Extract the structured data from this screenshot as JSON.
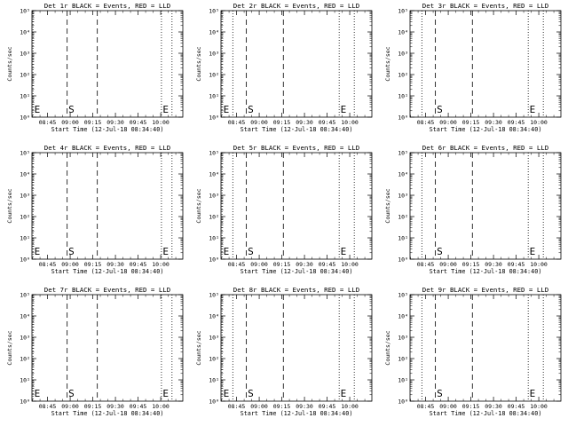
{
  "chart_data": [
    {
      "type": "line",
      "title": "Det 1r BLACK = Events, RED = LLD",
      "xlabel": "Start Time (12-Jul-18 08:34:40)",
      "ylabel": "Counts/sec",
      "x_ticks": [
        "08:45",
        "09:00",
        "09:15",
        "09:30",
        "09:45",
        "10:00"
      ],
      "y_ticks": [
        "10⁰",
        "10¹",
        "10²",
        "10³",
        "10⁴",
        "10⁵"
      ],
      "xlim": [
        "08:34:40",
        "10:14:40"
      ],
      "ylim": [
        1,
        100000
      ],
      "y_scale": "log",
      "markers": [
        {
          "label": "E",
          "x": "08:35:20",
          "style": "dotted"
        },
        {
          "label": "S",
          "x": "08:58:00",
          "style": "dashed"
        },
        {
          "label": "",
          "x": "09:18:00",
          "style": "dashed"
        },
        {
          "label": "E",
          "x": "10:00:30",
          "style": "dotted"
        },
        {
          "label": "",
          "x": "10:07:30",
          "style": "dotted"
        }
      ],
      "series": []
    },
    {
      "type": "line",
      "title": "Det 2r BLACK = Events, RED = LLD",
      "xlabel": "Start Time (12-Jul-18 08:34:40)",
      "ylabel": "Counts/sec",
      "x_ticks": [
        "08:45",
        "09:00",
        "09:15",
        "09:30",
        "09:45",
        "10:00"
      ],
      "y_ticks": [
        "10⁰",
        "10¹",
        "10²",
        "10³",
        "10⁴",
        "10⁵"
      ],
      "xlim": [
        "08:34:40",
        "10:14:40"
      ],
      "ylim": [
        1,
        100000
      ],
      "y_scale": "log",
      "markers": [
        {
          "label": "E",
          "x": "08:35:20",
          "style": "dotted"
        },
        {
          "label": "",
          "x": "08:42:30",
          "style": "dotted"
        },
        {
          "label": "S",
          "x": "08:51:30",
          "style": "dashed"
        },
        {
          "label": "",
          "x": "09:16:00",
          "style": "dashed"
        },
        {
          "label": "E",
          "x": "09:53:00",
          "style": "dotted"
        },
        {
          "label": "",
          "x": "10:03:00",
          "style": "dotted"
        }
      ],
      "series": []
    },
    {
      "type": "line",
      "title": "Det 3r BLACK = Events, RED = LLD",
      "xlabel": "Start Time (12-Jul-18 08:34:40)",
      "ylabel": "Counts/sec",
      "x_ticks": [
        "08:45",
        "09:00",
        "09:15",
        "09:30",
        "09:45",
        "10:00"
      ],
      "y_ticks": [
        "10⁰",
        "10¹",
        "10²",
        "10³",
        "10⁴",
        "10⁵"
      ],
      "xlim": [
        "08:34:40",
        "10:14:40"
      ],
      "ylim": [
        1,
        100000
      ],
      "y_scale": "log",
      "markers": [
        {
          "label": "",
          "x": "08:42:30",
          "style": "dotted"
        },
        {
          "label": "S",
          "x": "08:51:30",
          "style": "dashed"
        },
        {
          "label": "",
          "x": "09:16:00",
          "style": "dashed"
        },
        {
          "label": "E",
          "x": "09:53:00",
          "style": "dotted"
        },
        {
          "label": "",
          "x": "10:03:00",
          "style": "dotted"
        }
      ],
      "series": []
    },
    {
      "type": "line",
      "title": "Det 4r BLACK = Events, RED = LLD",
      "xlabel": "Start Time (12-Jul-18 08:34:40)",
      "ylabel": "Counts/sec",
      "x_ticks": [
        "08:45",
        "09:00",
        "09:15",
        "09:30",
        "09:45",
        "10:00"
      ],
      "y_ticks": [
        "10⁰",
        "10¹",
        "10²",
        "10³",
        "10⁴",
        "10⁵"
      ],
      "xlim": [
        "08:34:40",
        "10:14:40"
      ],
      "ylim": [
        1,
        100000
      ],
      "y_scale": "log",
      "markers": [
        {
          "label": "E",
          "x": "08:35:20",
          "style": "dotted"
        },
        {
          "label": "S",
          "x": "08:58:00",
          "style": "dashed"
        },
        {
          "label": "",
          "x": "09:18:00",
          "style": "dashed"
        },
        {
          "label": "E",
          "x": "10:00:30",
          "style": "dotted"
        },
        {
          "label": "",
          "x": "10:07:30",
          "style": "dotted"
        }
      ],
      "series": []
    },
    {
      "type": "line",
      "title": "Det 5r BLACK = Events, RED = LLD",
      "xlabel": "Start Time (12-Jul-18 08:34:40)",
      "ylabel": "Counts/sec",
      "x_ticks": [
        "08:45",
        "09:00",
        "09:15",
        "09:30",
        "09:45",
        "10:00"
      ],
      "y_ticks": [
        "10⁰",
        "10¹",
        "10²",
        "10³",
        "10⁴",
        "10⁵"
      ],
      "xlim": [
        "08:34:40",
        "10:14:40"
      ],
      "ylim": [
        1,
        100000
      ],
      "y_scale": "log",
      "markers": [
        {
          "label": "E",
          "x": "08:35:20",
          "style": "dotted"
        },
        {
          "label": "",
          "x": "08:42:30",
          "style": "dotted"
        },
        {
          "label": "S",
          "x": "08:51:30",
          "style": "dashed"
        },
        {
          "label": "",
          "x": "09:16:00",
          "style": "dashed"
        },
        {
          "label": "E",
          "x": "09:53:00",
          "style": "dotted"
        },
        {
          "label": "",
          "x": "10:03:00",
          "style": "dotted"
        }
      ],
      "series": []
    },
    {
      "type": "line",
      "title": "Det 6r BLACK = Events, RED = LLD",
      "xlabel": "Start Time (12-Jul-18 08:34:40)",
      "ylabel": "Counts/sec",
      "x_ticks": [
        "08:45",
        "09:00",
        "09:15",
        "09:30",
        "09:45",
        "10:00"
      ],
      "y_ticks": [
        "10⁰",
        "10¹",
        "10²",
        "10³",
        "10⁴",
        "10⁵"
      ],
      "xlim": [
        "08:34:40",
        "10:14:40"
      ],
      "ylim": [
        1,
        100000
      ],
      "y_scale": "log",
      "markers": [
        {
          "label": "",
          "x": "08:42:30",
          "style": "dotted"
        },
        {
          "label": "S",
          "x": "08:51:30",
          "style": "dashed"
        },
        {
          "label": "",
          "x": "09:16:00",
          "style": "dashed"
        },
        {
          "label": "E",
          "x": "09:53:00",
          "style": "dotted"
        },
        {
          "label": "",
          "x": "10:03:00",
          "style": "dotted"
        }
      ],
      "series": []
    },
    {
      "type": "line",
      "title": "Det 7r BLACK = Events, RED = LLD",
      "xlabel": "Start Time (12-Jul-18 08:34:40)",
      "ylabel": "Counts/sec",
      "x_ticks": [
        "08:45",
        "09:00",
        "09:15",
        "09:30",
        "09:45",
        "10:00"
      ],
      "y_ticks": [
        "10⁰",
        "10¹",
        "10²",
        "10³",
        "10⁴",
        "10⁵"
      ],
      "xlim": [
        "08:34:40",
        "10:14:40"
      ],
      "ylim": [
        1,
        100000
      ],
      "y_scale": "log",
      "markers": [
        {
          "label": "E",
          "x": "08:35:20",
          "style": "dotted"
        },
        {
          "label": "S",
          "x": "08:58:00",
          "style": "dashed"
        },
        {
          "label": "",
          "x": "09:18:00",
          "style": "dashed"
        },
        {
          "label": "E",
          "x": "10:00:30",
          "style": "dotted"
        },
        {
          "label": "",
          "x": "10:07:30",
          "style": "dotted"
        }
      ],
      "series": []
    },
    {
      "type": "line",
      "title": "Det 8r BLACK = Events, RED = LLD",
      "xlabel": "Start Time (12-Jul-18 08:34:40)",
      "ylabel": "Counts/sec",
      "x_ticks": [
        "08:45",
        "09:00",
        "09:15",
        "09:30",
        "09:45",
        "10:00"
      ],
      "y_ticks": [
        "10⁰",
        "10¹",
        "10²",
        "10³",
        "10⁴",
        "10⁵"
      ],
      "xlim": [
        "08:34:40",
        "10:14:40"
      ],
      "ylim": [
        1,
        100000
      ],
      "y_scale": "log",
      "markers": [
        {
          "label": "E",
          "x": "08:35:20",
          "style": "dotted"
        },
        {
          "label": "",
          "x": "08:42:30",
          "style": "dotted"
        },
        {
          "label": "S",
          "x": "08:51:30",
          "style": "dashed"
        },
        {
          "label": "",
          "x": "09:16:00",
          "style": "dashed"
        },
        {
          "label": "E",
          "x": "09:53:00",
          "style": "dotted"
        },
        {
          "label": "",
          "x": "10:03:00",
          "style": "dotted"
        }
      ],
      "series": []
    },
    {
      "type": "line",
      "title": "Det 9r BLACK = Events, RED = LLD",
      "xlabel": "Start Time (12-Jul-18 08:34:40)",
      "ylabel": "Counts/sec",
      "x_ticks": [
        "08:45",
        "09:00",
        "09:15",
        "09:30",
        "09:45",
        "10:00"
      ],
      "y_ticks": [
        "10⁰",
        "10¹",
        "10²",
        "10³",
        "10⁴",
        "10⁵"
      ],
      "xlim": [
        "08:34:40",
        "10:14:40"
      ],
      "ylim": [
        1,
        100000
      ],
      "y_scale": "log",
      "markers": [
        {
          "label": "",
          "x": "08:42:30",
          "style": "dotted"
        },
        {
          "label": "S",
          "x": "08:51:30",
          "style": "dashed"
        },
        {
          "label": "",
          "x": "09:16:00",
          "style": "dashed"
        },
        {
          "label": "E",
          "x": "09:53:00",
          "style": "dotted"
        },
        {
          "label": "",
          "x": "10:03:00",
          "style": "dotted"
        }
      ],
      "series": []
    }
  ]
}
